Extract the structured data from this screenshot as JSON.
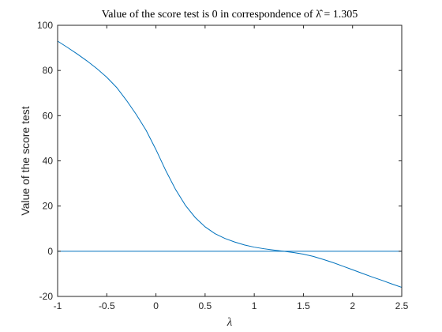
{
  "chart_data": {
    "type": "line",
    "title": "Value of the score test is 0 in correspondence of λ̂ = 1.305",
    "xlabel": "λ",
    "ylabel": "Value of the score test",
    "xlim": [
      -1,
      2.5
    ],
    "ylim": [
      -20,
      100
    ],
    "x_ticks": [
      "-1",
      "-0.5",
      "0",
      "0.5",
      "1",
      "1.5",
      "2",
      "2.5"
    ],
    "y_ticks": [
      "-20",
      "0",
      "20",
      "40",
      "60",
      "80",
      "100"
    ],
    "grid": false,
    "legend": "none",
    "series": [
      {
        "color": "#0072BD",
        "x": [
          -1,
          -0.9,
          -0.8,
          -0.7,
          -0.6,
          -0.5,
          -0.4,
          -0.3,
          -0.2,
          -0.1,
          0,
          0.1,
          0.2,
          0.3,
          0.4,
          0.5,
          0.6,
          0.7,
          0.8,
          0.9,
          1,
          1.1,
          1.2,
          1.3,
          1.4,
          1.5,
          1.6,
          1.7,
          1.8,
          1.9,
          2,
          2.1,
          2.2,
          2.3,
          2.4,
          2.5
        ],
        "y": [
          93,
          90.2,
          87.3,
          84.2,
          80.8,
          77,
          72.5,
          66.8,
          60.5,
          53.5,
          45,
          35.7,
          27.3,
          20.3,
          14.9,
          10.8,
          7.8,
          5.7,
          4.1,
          2.8,
          1.8,
          1.1,
          0.5,
          0,
          -0.6,
          -1.3,
          -2.3,
          -3.6,
          -5,
          -6.6,
          -8.2,
          -9.8,
          -11.4,
          -12.9,
          -14.5,
          -16
        ]
      },
      {
        "color": "#0072BD",
        "x": [
          -1,
          2.5
        ],
        "y": [
          0,
          0
        ]
      }
    ]
  }
}
